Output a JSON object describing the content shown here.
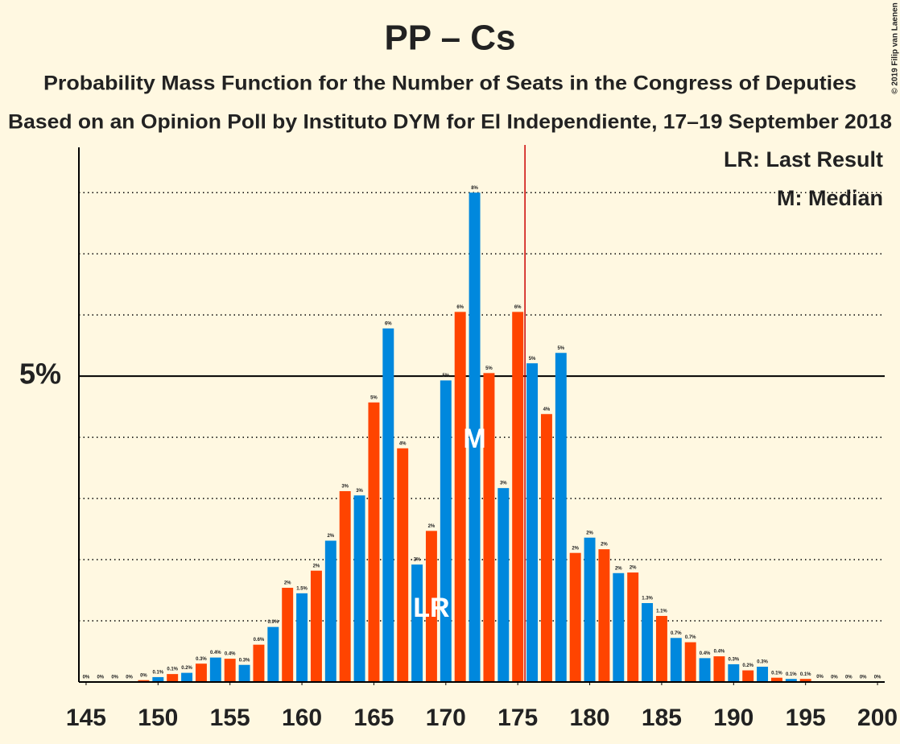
{
  "chart_data": {
    "type": "bar",
    "title": "PP – Cs",
    "subtitle": "Probability Mass Function for the Number of Seats in the Congress of Deputies",
    "subtitle2": "Based on an Opinion Poll by Instituto DYM for El Independiente, 17–19 September 2018",
    "copyright": "© 2019 Filip van Laenen",
    "legend": [
      "LR: Last Result",
      "M: Median"
    ],
    "x": [
      145,
      146,
      147,
      148,
      149,
      150,
      151,
      152,
      153,
      154,
      155,
      156,
      157,
      158,
      159,
      160,
      161,
      162,
      163,
      164,
      165,
      166,
      167,
      168,
      169,
      170,
      171,
      172,
      173,
      174,
      175,
      176,
      177,
      178,
      179,
      180,
      181,
      182,
      183,
      184,
      185,
      186,
      187,
      188,
      189,
      190,
      191,
      192,
      193,
      194,
      195,
      196,
      197,
      198,
      199,
      200
    ],
    "values": [
      0,
      0,
      0,
      0,
      0.03,
      0.08,
      0.13,
      0.15,
      0.3,
      0.4,
      0.38,
      0.28,
      0.61,
      0.9,
      1.54,
      1.45,
      1.82,
      2.31,
      3.12,
      3.05,
      4.57,
      5.78,
      3.82,
      1.92,
      2.47,
      4.93,
      6.05,
      8.0,
      5.05,
      3.17,
      6.05,
      5.21,
      4.38,
      5.38,
      2.11,
      2.36,
      2.17,
      1.78,
      1.79,
      1.29,
      1.08,
      0.72,
      0.65,
      0.39,
      0.42,
      0.29,
      0.19,
      0.25,
      0.07,
      0.05,
      0.05,
      0.01,
      0,
      0,
      0,
      0
    ],
    "value_labels": [
      "0%",
      "0%",
      "0%",
      "0%",
      "0%",
      "0.1%",
      "0.1%",
      "0.2%",
      "0.3%",
      "0.4%",
      "0.4%",
      "0.3%",
      "0.6%",
      "0.9%",
      "2%",
      "1.5%",
      "2%",
      "2%",
      "3%",
      "3%",
      "5%",
      "6%",
      "4%",
      "2%",
      "2%",
      "5%",
      "6%",
      "8%",
      "5%",
      "3%",
      "6%",
      "5%",
      "4%",
      "5%",
      "2%",
      "2%",
      "2%",
      "2%",
      "2%",
      "1.3%",
      "1.1%",
      "0.7%",
      "0.7%",
      "0.4%",
      "0.4%",
      "0.3%",
      "0.2%",
      "0.3%",
      "0.1%",
      "0.1%",
      "0.1%",
      "0%",
      "0%",
      "0%",
      "0%",
      "0%"
    ],
    "colors": [
      "#ff4400",
      "#0088dd"
    ],
    "xlim": [
      144.5,
      200.5
    ],
    "xticks": [
      145,
      150,
      155,
      160,
      165,
      170,
      175,
      180,
      185,
      190,
      195,
      200
    ],
    "ylim": [
      0,
      8.74
    ],
    "yticks": [
      {
        "value": 5,
        "label": "5%"
      }
    ],
    "grid_lines": [
      1,
      2,
      3,
      4,
      6,
      7,
      8
    ],
    "majority": 176,
    "majority_color": "#cc0000",
    "markers": [
      {
        "label": "LR",
        "x": 169
      },
      {
        "label": "M",
        "x": 172
      }
    ]
  }
}
